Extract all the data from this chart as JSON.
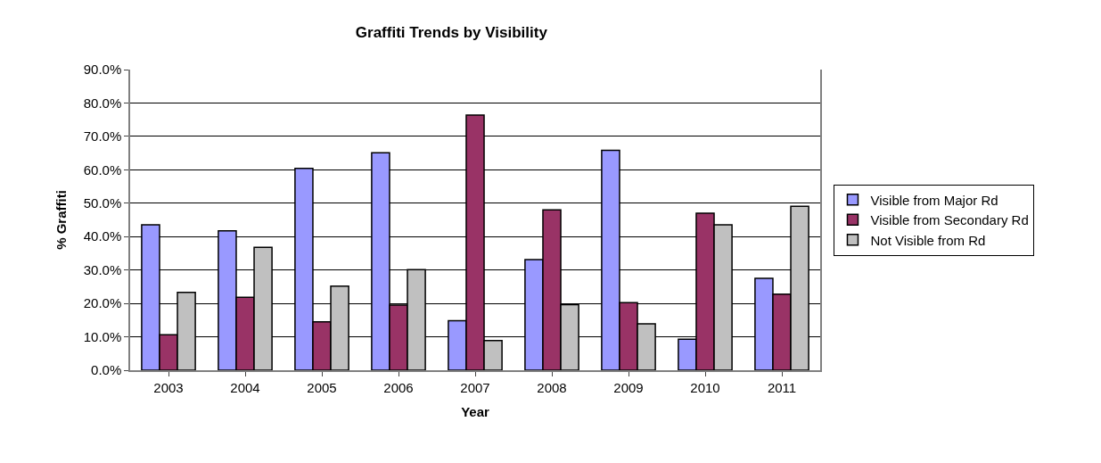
{
  "chart_data": {
    "type": "bar",
    "title": "Graffiti Trends by Visibility",
    "xlabel": "Year",
    "ylabel": "% Graffiti",
    "categories": [
      "2003",
      "2004",
      "2005",
      "2006",
      "2007",
      "2008",
      "2009",
      "2010",
      "2011"
    ],
    "series": [
      {
        "name": "Visible from Major Rd",
        "color": "#9999ff",
        "values": [
          43.5,
          41.7,
          60.4,
          65.1,
          14.8,
          33.1,
          65.8,
          9.3,
          27.5
        ]
      },
      {
        "name": "Visible from Secondary Rd",
        "color": "#993366",
        "values": [
          10.6,
          21.8,
          14.5,
          19.5,
          76.4,
          48.0,
          20.2,
          47.0,
          22.8
        ]
      },
      {
        "name": "Not Visible from Rd",
        "color": "#c0c0c0",
        "values": [
          23.3,
          36.8,
          25.2,
          30.1,
          8.9,
          19.6,
          13.9,
          43.5,
          49.1
        ]
      }
    ],
    "ylim": [
      0,
      90
    ],
    "yticks": [
      {
        "value": 0,
        "label": "0.0%"
      },
      {
        "value": 10,
        "label": "10.0%"
      },
      {
        "value": 20,
        "label": "20.0%"
      },
      {
        "value": 30,
        "label": "30.0%"
      },
      {
        "value": 40,
        "label": "40.0%"
      },
      {
        "value": 50,
        "label": "50.0%"
      },
      {
        "value": 60,
        "label": "60.0%"
      },
      {
        "value": 70,
        "label": "70.0%"
      },
      {
        "value": 80,
        "label": "80.0%"
      },
      {
        "value": 90,
        "label": "90.0%"
      }
    ],
    "grid": "y",
    "legend": "right"
  }
}
